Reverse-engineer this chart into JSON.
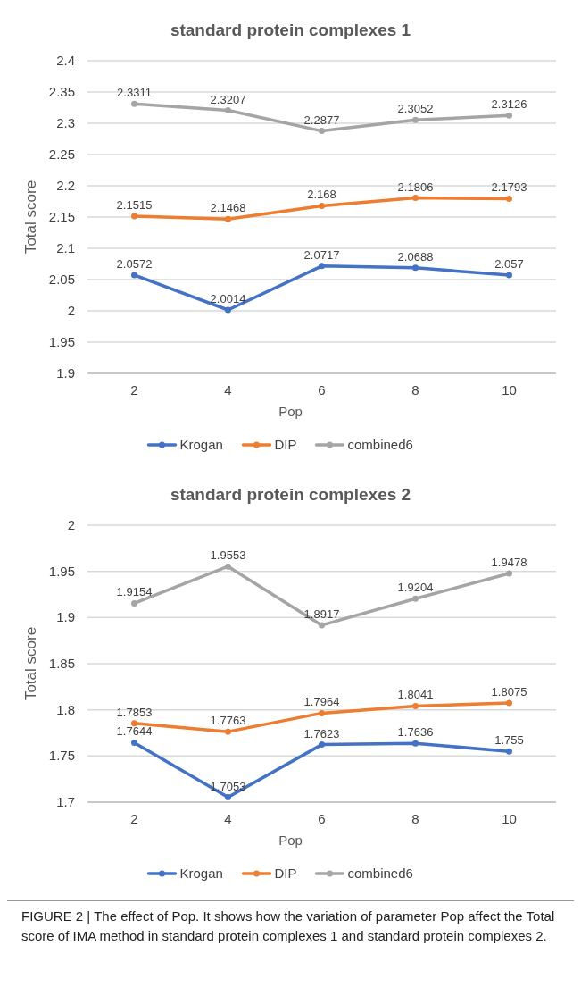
{
  "chart_data": [
    {
      "type": "line",
      "title": "standard  protein complexes 1",
      "xlabel": "Pop",
      "ylabel": "Total score",
      "categories": [
        "2",
        "4",
        "6",
        "8",
        "10"
      ],
      "series": [
        {
          "name": "Krogan",
          "color": "#4472c4",
          "values": [
            2.0572,
            2.0014,
            2.0717,
            2.0688,
            2.057
          ]
        },
        {
          "name": "DIP",
          "color": "#ed7d31",
          "values": [
            2.1515,
            2.1468,
            2.168,
            2.1806,
            2.1793
          ]
        },
        {
          "name": "combined6",
          "color": "#a5a5a5",
          "values": [
            2.3311,
            2.3207,
            2.2877,
            2.3052,
            2.3126
          ]
        }
      ],
      "ylim": [
        1.9,
        2.4
      ],
      "yticks": [
        1.9,
        1.95,
        2,
        2.05,
        2.1,
        2.15,
        2.2,
        2.25,
        2.3,
        2.35,
        2.4
      ],
      "grid": "y",
      "legend": "bottom",
      "marker": "circle",
      "data_labels": true
    },
    {
      "type": "line",
      "title": "standard protein complexes 2",
      "xlabel": "Pop",
      "ylabel": "Total score",
      "categories": [
        "2",
        "4",
        "6",
        "8",
        "10"
      ],
      "series": [
        {
          "name": "Krogan",
          "color": "#4472c4",
          "values": [
            1.7644,
            1.7053,
            1.7623,
            1.7636,
            1.755
          ]
        },
        {
          "name": "DIP",
          "color": "#ed7d31",
          "values": [
            1.7853,
            1.7763,
            1.7964,
            1.8041,
            1.8075
          ]
        },
        {
          "name": "combined6",
          "color": "#a5a5a5",
          "values": [
            1.9154,
            1.9553,
            1.8917,
            1.9204,
            1.9478
          ]
        }
      ],
      "ylim": [
        1.7,
        2
      ],
      "yticks": [
        1.7,
        1.75,
        1.8,
        1.85,
        1.9,
        1.95,
        2
      ],
      "grid": "y",
      "legend": "bottom",
      "marker": "circle",
      "data_labels": true,
      "annotations": [
        "FIGURE 2 | The effect of Pop. It shows how the variation of parameter Pop affect the Total score of IMA method in standard protein complexes 1 and standard protein complexes 2."
      ]
    }
  ]
}
